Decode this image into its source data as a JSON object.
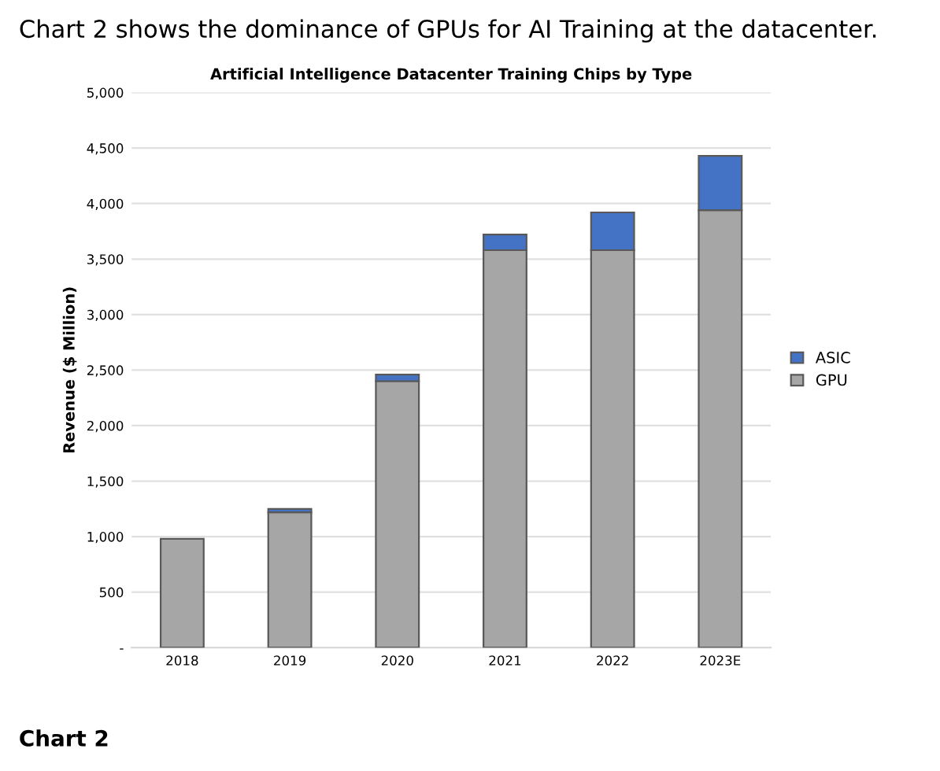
{
  "chart_data": {
    "type": "bar",
    "title": "Artificial Intelligence Datacenter Training Chips by Type",
    "subtitle": "Chart 2 shows the dominance of GPUs for AI Training at the datacenter.",
    "ylabel": "Revenue ($ Million)",
    "annotations": [
      "Chart 2"
    ],
    "categories": [
      "2018",
      "2019",
      "2020",
      "2021",
      "2022",
      "2023E"
    ],
    "stacked": true,
    "series": [
      {
        "name": "GPU",
        "color": "#a6a6a6",
        "values": [
          980,
          1220,
          2400,
          3580,
          3580,
          3940
        ]
      },
      {
        "name": "ASIC",
        "color": "#4472c4",
        "values": [
          null,
          30,
          60,
          140,
          340,
          490
        ]
      }
    ],
    "ylim": [
      0,
      5000
    ],
    "yticks": [
      {
        "value": 0,
        "label": "-"
      },
      {
        "value": 500,
        "label": "500"
      },
      {
        "value": 1000,
        "label": "1,000"
      },
      {
        "value": 1500,
        "label": "1,500"
      },
      {
        "value": 2000,
        "label": "2,000"
      },
      {
        "value": 2500,
        "label": "2,500"
      },
      {
        "value": 3000,
        "label": "3,000"
      },
      {
        "value": 3500,
        "label": "3,500"
      },
      {
        "value": 4000,
        "label": "4,000"
      },
      {
        "value": 4500,
        "label": "4,500"
      },
      {
        "value": 5000,
        "label": "5,000"
      }
    ],
    "grid": "y",
    "legend": "right"
  }
}
